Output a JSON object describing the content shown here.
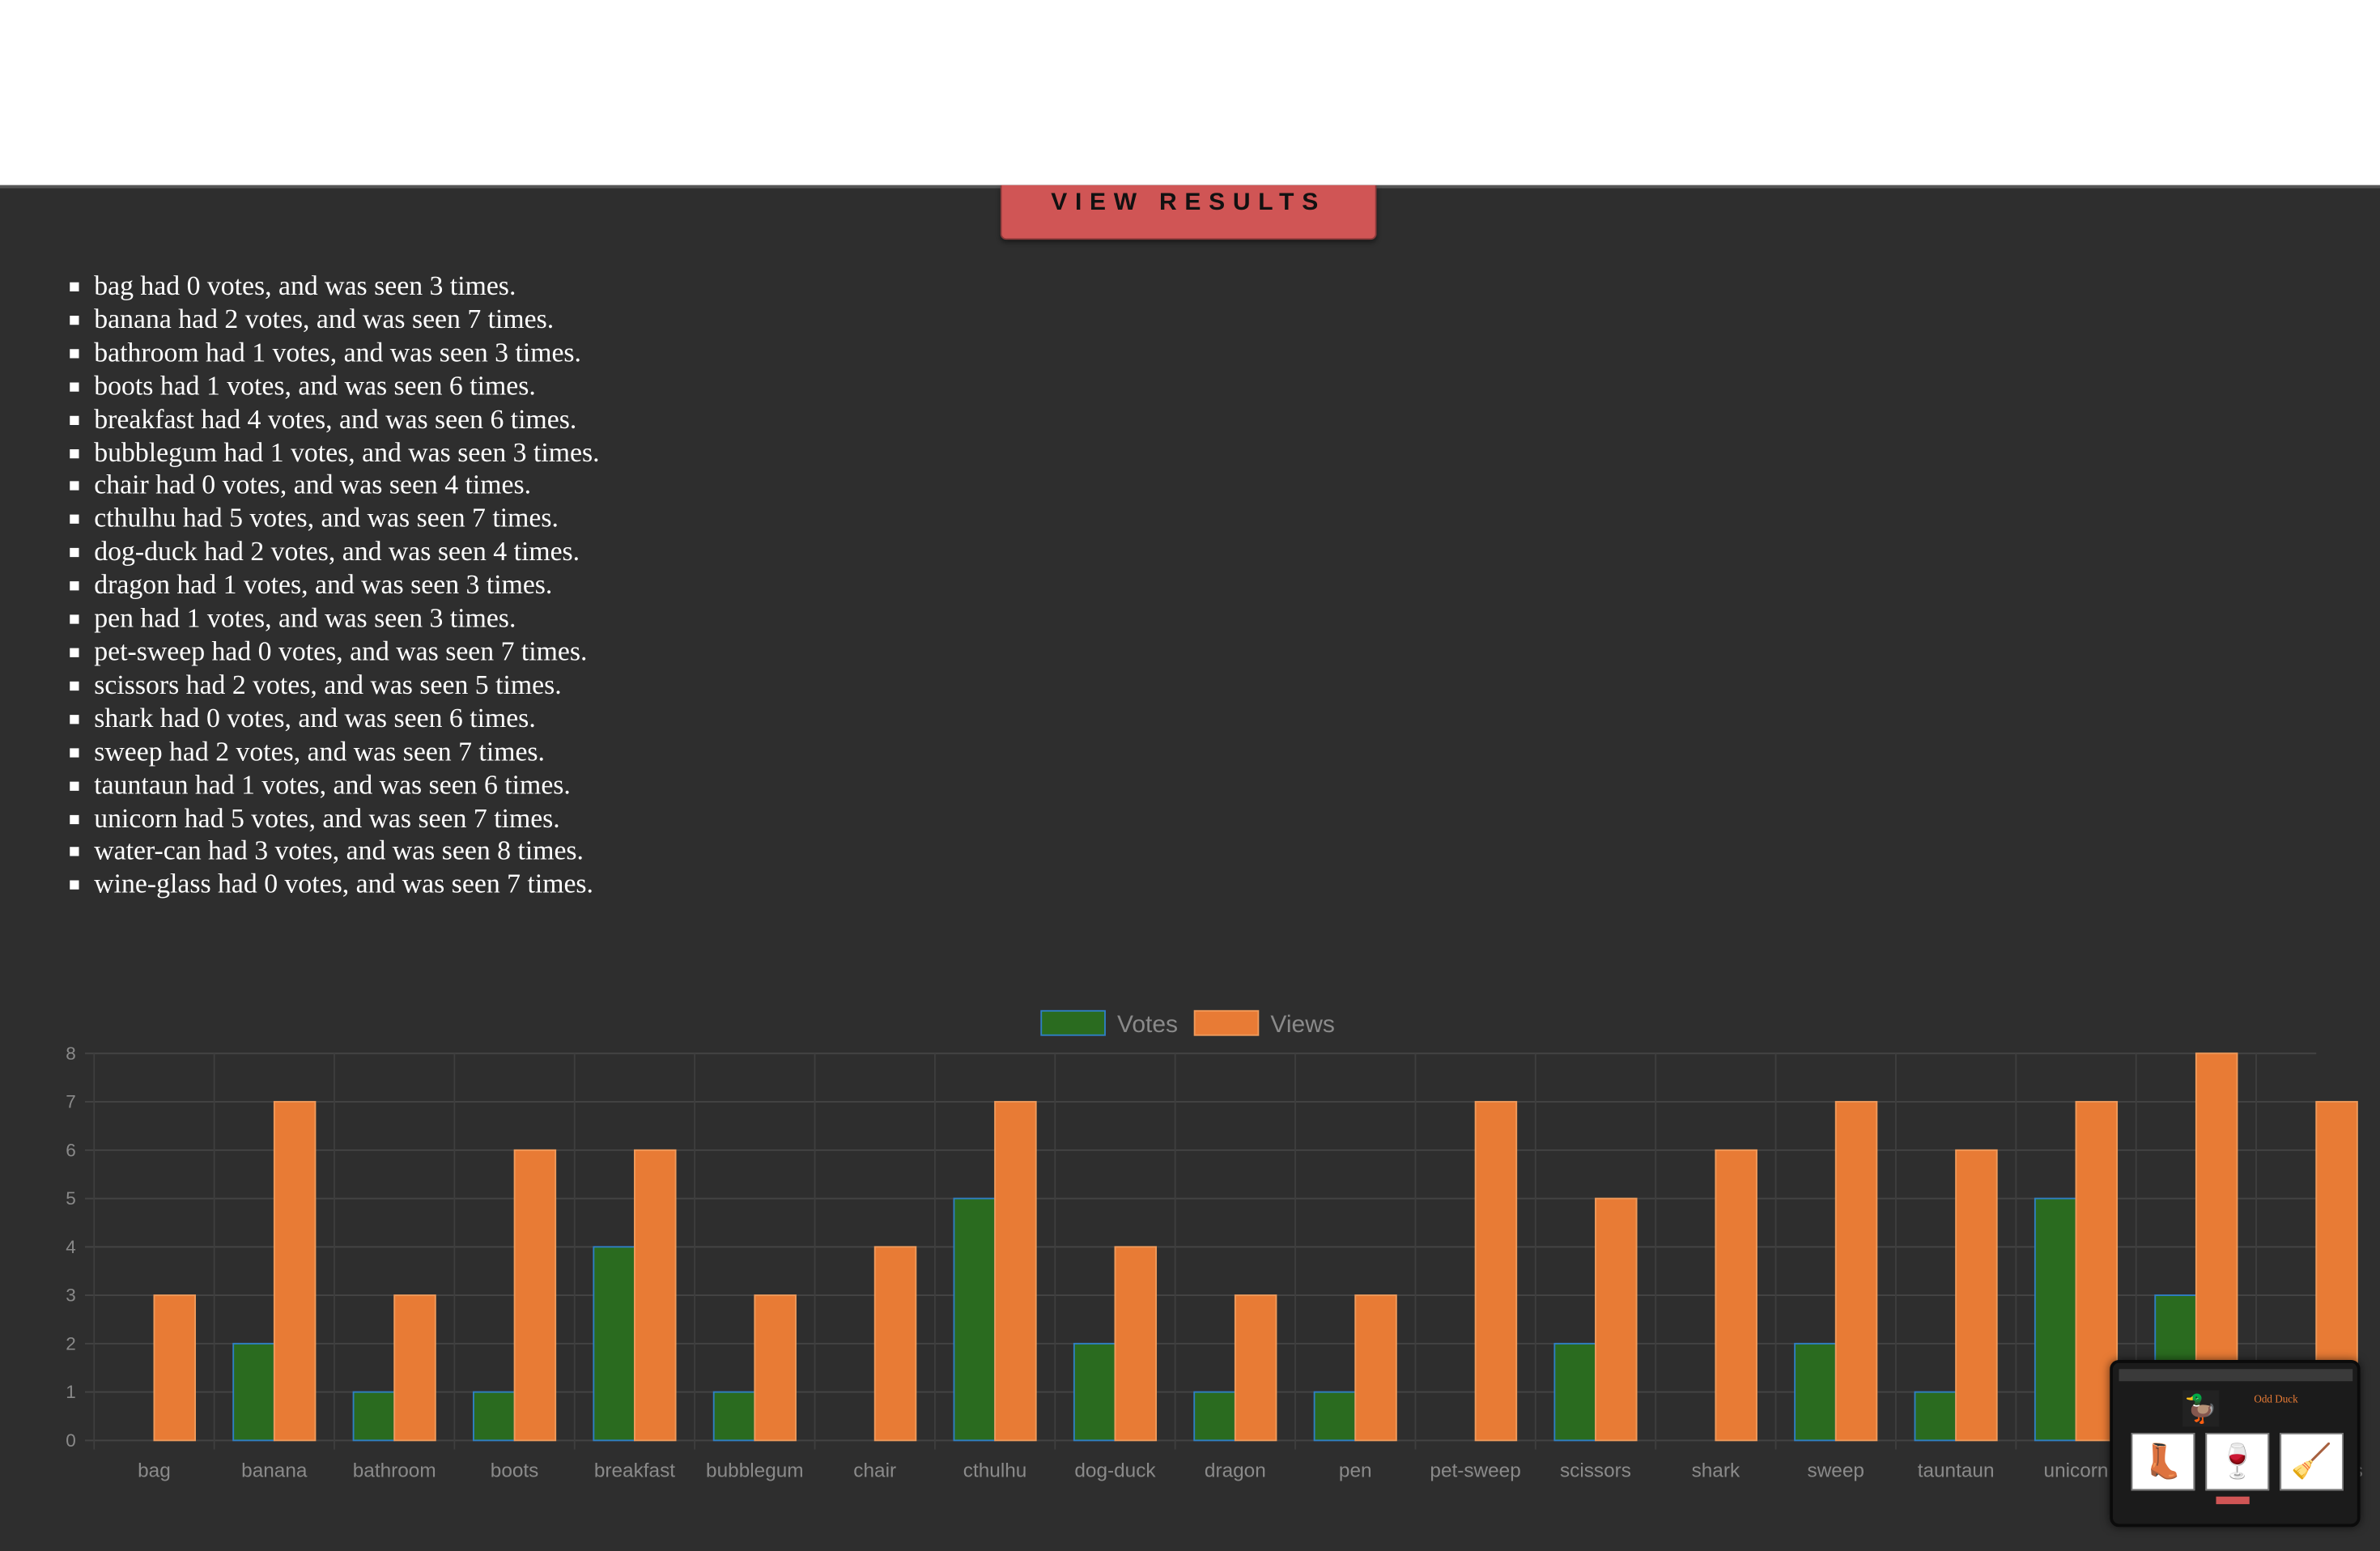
{
  "page": {
    "view_results_label": "VIEW RESULTS"
  },
  "results": [
    "bag had 0 votes, and was seen 3 times.",
    "banana had 2 votes, and was seen 7 times.",
    "bathroom had 1 votes, and was seen 3 times.",
    "boots had 1 votes, and was seen 6 times.",
    "breakfast had 4 votes, and was seen 6 times.",
    "bubblegum had 1 votes, and was seen 3 times.",
    "chair had 0 votes, and was seen 4 times.",
    "cthulhu had 5 votes, and was seen 7 times.",
    "dog-duck had 2 votes, and was seen 4 times.",
    "dragon had 1 votes, and was seen 3 times.",
    "pen had 1 votes, and was seen 3 times.",
    "pet-sweep had 0 votes, and was seen 7 times.",
    "scissors had 2 votes, and was seen 5 times.",
    "shark had 0 votes, and was seen 6 times.",
    "sweep had 2 votes, and was seen 7 times.",
    "tauntaun had 1 votes, and was seen 6 times.",
    "unicorn had 5 votes, and was seen 7 times.",
    "water-can had 3 votes, and was seen 8 times.",
    "wine-glass had 0 votes, and was seen 7 times."
  ],
  "chart_data": {
    "type": "bar",
    "categories": [
      "bag",
      "banana",
      "bathroom",
      "boots",
      "breakfast",
      "bubblegum",
      "chair",
      "cthulhu",
      "dog-duck",
      "dragon",
      "pen",
      "pet-sweep",
      "scissors",
      "shark",
      "sweep",
      "tauntaun",
      "unicorn",
      "water-can",
      "wine-glass"
    ],
    "series": [
      {
        "name": "Votes",
        "values": [
          0,
          2,
          1,
          1,
          4,
          1,
          0,
          5,
          2,
          1,
          1,
          0,
          2,
          0,
          2,
          1,
          5,
          3,
          0
        ],
        "color": "#2a6b1f",
        "border": "#2f7fc4"
      },
      {
        "name": "Views",
        "values": [
          3,
          7,
          3,
          6,
          6,
          3,
          4,
          7,
          4,
          3,
          3,
          7,
          5,
          6,
          7,
          6,
          7,
          8,
          7
        ],
        "color": "#e87b35",
        "border": "#f09a5a"
      }
    ],
    "ylim": [
      0,
      8
    ],
    "yticks": [
      0,
      1,
      2,
      3,
      4,
      5,
      6,
      7,
      8
    ],
    "legend": "top-center",
    "grid": true
  },
  "thumbnail": {
    "title": "Odd Duck",
    "duck_icon": "🦆",
    "cards": [
      "👢",
      "🍷",
      "🧹"
    ]
  }
}
